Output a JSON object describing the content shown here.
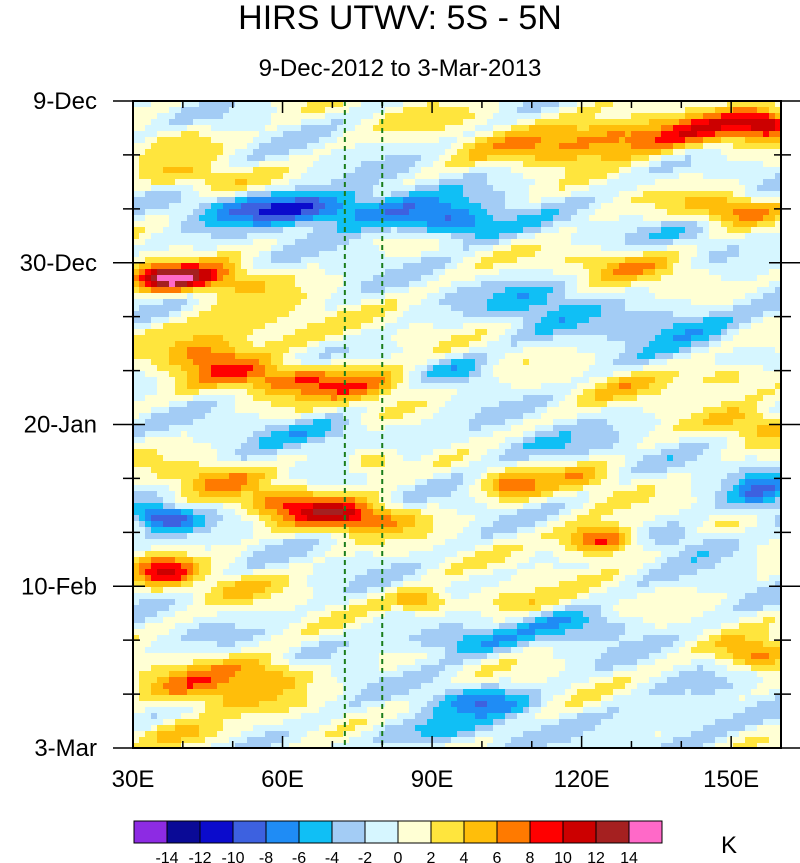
{
  "chart_data": {
    "type": "heatmap",
    "title": "HIRS UTWV: 5S - 5N",
    "subtitle": "9-Dec-2012 to 3-Mar-2013",
    "xlabel": "",
    "ylabel": "",
    "xlim": [
      30,
      160
    ],
    "x_ticks": [
      {
        "value": 30,
        "label": "30E"
      },
      {
        "value": 60,
        "label": "60E"
      },
      {
        "value": 90,
        "label": "90E"
      },
      {
        "value": 120,
        "label": "120E"
      },
      {
        "value": 150,
        "label": "150E"
      }
    ],
    "y_ticks": [
      {
        "day": 0,
        "label": "9-Dec"
      },
      {
        "day": 21,
        "label": "30-Dec"
      },
      {
        "day": 42,
        "label": "20-Jan"
      },
      {
        "day": 63,
        "label": "10-Feb"
      },
      {
        "day": 84,
        "label": "3-Mar"
      }
    ],
    "y_range_days": [
      0,
      84
    ],
    "reference_lines_lon": [
      72.5,
      80
    ],
    "colorbar": {
      "unit": "K",
      "levels": [
        -14,
        -12,
        -10,
        -8,
        -6,
        -4,
        -2,
        0,
        2,
        4,
        6,
        8,
        10,
        12,
        14
      ],
      "labels": [
        "-14",
        "-12",
        "-10",
        "-8",
        "-6",
        "-4",
        "-2",
        "0",
        "2",
        "4",
        "6",
        "8",
        "10",
        "12",
        "14"
      ],
      "colors": [
        "#8d2be3",
        "#0a0a96",
        "#0b0bcc",
        "#3d61e0",
        "#1f8cf5",
        "#10bff5",
        "#a3ccf5",
        "#d6f6ff",
        "#ffffd4",
        "#ffe53d",
        "#ffbe0a",
        "#ff7a00",
        "#ff0000",
        "#cc0000",
        "#a52020",
        "#ff69c8"
      ]
    },
    "anomalies": [
      {
        "lon": 95,
        "day": 1.5,
        "value": 2,
        "rlon": 14,
        "rday": 2
      },
      {
        "lon": 128,
        "day": 4.5,
        "value": 8,
        "rlon": 18,
        "rday": 2.5
      },
      {
        "lon": 148,
        "day": 3.5,
        "value": 6,
        "rlon": 12,
        "rday": 2.5
      },
      {
        "lon": 157,
        "day": 3,
        "value": 9,
        "rlon": 5,
        "rday": 1.5
      },
      {
        "lon": 112,
        "day": 6.5,
        "value": 4,
        "rlon": 14,
        "rday": 2
      },
      {
        "lon": 42,
        "day": 10,
        "value": 4,
        "rlon": 12,
        "rday": 2
      },
      {
        "lon": 40,
        "day": 5,
        "value": 3,
        "rlon": 8,
        "rday": 2
      },
      {
        "lon": 75,
        "day": 14,
        "value": -7,
        "rlon": 22,
        "rday": 2.5
      },
      {
        "lon": 58,
        "day": 14,
        "value": -6,
        "rlon": 14,
        "rday": 2
      },
      {
        "lon": 95,
        "day": 16,
        "value": -7,
        "rlon": 10,
        "rday": 2
      },
      {
        "lon": 150,
        "day": 14,
        "value": 7,
        "rlon": 10,
        "rday": 2
      },
      {
        "lon": 143,
        "day": 17,
        "value": -3,
        "rlon": 10,
        "rday": 2
      },
      {
        "lon": 42,
        "day": 23,
        "value": 9,
        "rlon": 12,
        "rday": 2
      },
      {
        "lon": 36,
        "day": 23,
        "value": 8,
        "rlon": 6,
        "rday": 1.5
      },
      {
        "lon": 128,
        "day": 21,
        "value": 5,
        "rlon": 12,
        "rday": 2
      },
      {
        "lon": 140,
        "day": 23,
        "value": 3,
        "rlon": 10,
        "rday": 2
      },
      {
        "lon": 112,
        "day": 26,
        "value": -5,
        "rlon": 10,
        "rday": 3
      },
      {
        "lon": 140,
        "day": 29,
        "value": -5,
        "rlon": 14,
        "rday": 3
      },
      {
        "lon": 55,
        "day": 29,
        "value": 4,
        "rlon": 14,
        "rday": 3
      },
      {
        "lon": 45,
        "day": 33,
        "value": 7,
        "rlon": 10,
        "rday": 3
      },
      {
        "lon": 60,
        "day": 36,
        "value": 7,
        "rlon": 12,
        "rday": 2
      },
      {
        "lon": 77,
        "day": 37,
        "value": 7,
        "rlon": 12,
        "rday": 2.5
      },
      {
        "lon": 95,
        "day": 35,
        "value": -4,
        "rlon": 8,
        "rday": 2
      },
      {
        "lon": 150,
        "day": 36,
        "value": 5,
        "rlon": 10,
        "rday": 2
      },
      {
        "lon": 130,
        "day": 37,
        "value": 3,
        "rlon": 10,
        "rday": 2
      },
      {
        "lon": 155,
        "day": 42,
        "value": 5,
        "rlon": 8,
        "rday": 2
      },
      {
        "lon": 70,
        "day": 43,
        "value": -4,
        "rlon": 14,
        "rday": 2
      },
      {
        "lon": 110,
        "day": 45,
        "value": -3,
        "rlon": 14,
        "rday": 2
      },
      {
        "lon": 45,
        "day": 49,
        "value": 5,
        "rlon": 10,
        "rday": 2
      },
      {
        "lon": 78,
        "day": 47,
        "value": 5,
        "rlon": 6,
        "rday": 2
      },
      {
        "lon": 106,
        "day": 50,
        "value": 7,
        "rlon": 6,
        "rday": 2
      },
      {
        "lon": 120,
        "day": 49,
        "value": 4,
        "rlon": 8,
        "rday": 2
      },
      {
        "lon": 73,
        "day": 54,
        "value": 10,
        "rlon": 12,
        "rday": 2
      },
      {
        "lon": 60,
        "day": 52,
        "value": 6,
        "rlon": 10,
        "rday": 2
      },
      {
        "lon": 36,
        "day": 54,
        "value": -10,
        "rlon": 6,
        "rday": 1.5
      },
      {
        "lon": 156,
        "day": 51,
        "value": -6,
        "rlon": 6,
        "rday": 3
      },
      {
        "lon": 124,
        "day": 57,
        "value": 11,
        "rlon": 8,
        "rday": 2
      },
      {
        "lon": 140,
        "day": 57,
        "value": -4,
        "rlon": 10,
        "rday": 2
      },
      {
        "lon": 36,
        "day": 61,
        "value": 9,
        "rlon": 6,
        "rday": 2
      },
      {
        "lon": 50,
        "day": 63,
        "value": 3,
        "rlon": 10,
        "rday": 2
      },
      {
        "lon": 88,
        "day": 65,
        "value": 7,
        "rlon": 6,
        "rday": 1.5
      },
      {
        "lon": 105,
        "day": 65,
        "value": 4,
        "rlon": 10,
        "rday": 2
      },
      {
        "lon": 120,
        "day": 68,
        "value": -4,
        "rlon": 12,
        "rday": 2
      },
      {
        "lon": 95,
        "day": 70,
        "value": -6,
        "rlon": 12,
        "rday": 2
      },
      {
        "lon": 155,
        "day": 72,
        "value": 7,
        "rlon": 8,
        "rday": 2
      },
      {
        "lon": 45,
        "day": 76,
        "value": 6,
        "rlon": 14,
        "rday": 3
      },
      {
        "lon": 58,
        "day": 74,
        "value": 5,
        "rlon": 8,
        "rday": 2
      },
      {
        "lon": 100,
        "day": 78,
        "value": -6,
        "rlon": 10,
        "rday": 2
      },
      {
        "lon": 90,
        "day": 82,
        "value": -4,
        "rlon": 14,
        "rday": 2
      },
      {
        "lon": 140,
        "day": 80,
        "value": -3,
        "rlon": 14,
        "rday": 3
      },
      {
        "lon": 40,
        "day": 82,
        "value": 5,
        "rlon": 10,
        "rday": 2
      }
    ]
  }
}
